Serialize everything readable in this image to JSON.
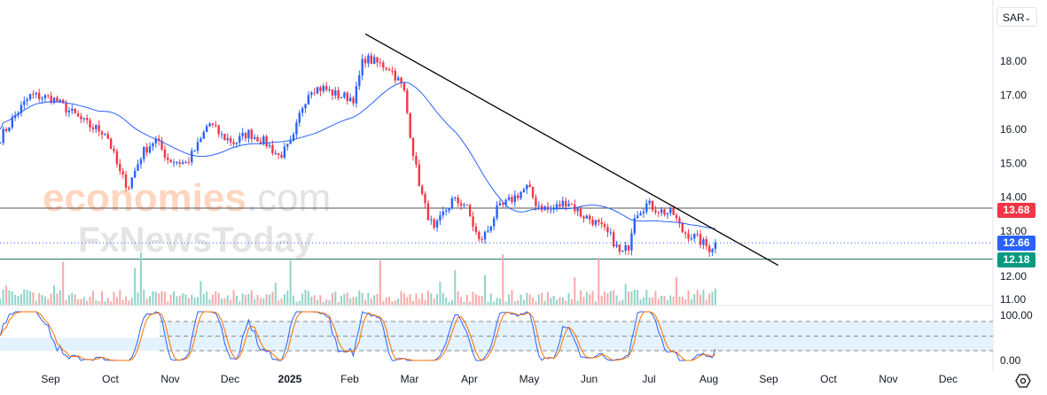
{
  "currency_selector": {
    "value": "SAR",
    "icon": "chevron-down-icon"
  },
  "watermark": {
    "brand1": "economies",
    "brand1_suffix": ".com",
    "brand2": "FxNewsToday"
  },
  "price_tags": {
    "resistance": {
      "value": "13.68",
      "color": "#f23645"
    },
    "last": {
      "value": "12.66",
      "color": "#2962ff"
    },
    "support": {
      "value": "12.18",
      "color": "#089981"
    }
  },
  "chart_data": {
    "type": "candlestick",
    "title": "",
    "y_axis": {
      "ticks": [
        "18.00",
        "17.00",
        "16.00",
        "15.00",
        "14.00",
        "13.00",
        "12.00",
        "11.00"
      ],
      "range": [
        11,
        18
      ]
    },
    "x_axis": {
      "ticks": [
        "Sep",
        "Oct",
        "Nov",
        "Dec",
        "2025",
        "Feb",
        "Mar",
        "Apr",
        "May",
        "Jun",
        "Jul",
        "Aug",
        "Sep",
        "Oct",
        "Nov",
        "Dec"
      ],
      "unit": "months since Sep 2024"
    },
    "close_keypoints": [
      [
        -0.84,
        15.75
      ],
      [
        -0.55,
        16.5
      ],
      [
        -0.33,
        17.0
      ],
      [
        0.04,
        16.9
      ],
      [
        0.34,
        16.5
      ],
      [
        0.64,
        16.1
      ],
      [
        0.93,
        15.9
      ],
      [
        1.16,
        14.7
      ],
      [
        1.3,
        14.3
      ],
      [
        1.53,
        15.3
      ],
      [
        1.75,
        15.7
      ],
      [
        1.97,
        15.1
      ],
      [
        2.27,
        15.0
      ],
      [
        2.49,
        15.6
      ],
      [
        2.64,
        16.2
      ],
      [
        2.86,
        15.8
      ],
      [
        3.08,
        15.6
      ],
      [
        3.3,
        15.9
      ],
      [
        3.6,
        15.6
      ],
      [
        3.82,
        15.2
      ],
      [
        4.04,
        15.6
      ],
      [
        4.19,
        16.6
      ],
      [
        4.34,
        17.2
      ],
      [
        4.56,
        17.2
      ],
      [
        4.79,
        17.0
      ],
      [
        5.08,
        16.9
      ],
      [
        5.23,
        18.1
      ],
      [
        5.38,
        18.0
      ],
      [
        5.67,
        17.8
      ],
      [
        5.9,
        17.2
      ],
      [
        6.0,
        16.0
      ],
      [
        6.09,
        15.0
      ],
      [
        6.24,
        13.8
      ],
      [
        6.41,
        13.0
      ],
      [
        6.56,
        13.5
      ],
      [
        6.71,
        13.9
      ],
      [
        6.93,
        13.8
      ],
      [
        7.16,
        12.7
      ],
      [
        7.3,
        13.0
      ],
      [
        7.45,
        13.6
      ],
      [
        7.75,
        14.0
      ],
      [
        7.97,
        14.3
      ],
      [
        8.12,
        13.8
      ],
      [
        8.34,
        13.6
      ],
      [
        8.64,
        13.9
      ],
      [
        8.86,
        13.5
      ],
      [
        9.08,
        13.3
      ],
      [
        9.38,
        12.8
      ],
      [
        9.53,
        12.3
      ],
      [
        9.67,
        12.6
      ],
      [
        9.75,
        13.5
      ],
      [
        9.97,
        13.8
      ],
      [
        10.19,
        13.6
      ],
      [
        10.41,
        13.5
      ],
      [
        10.56,
        13.0
      ],
      [
        10.79,
        12.8
      ],
      [
        11.01,
        12.5
      ],
      [
        11.13,
        12.66
      ]
    ],
    "moving_average": {
      "period": 50,
      "color": "#2962ff"
    },
    "horizontal_levels": [
      13.68,
      12.66,
      12.18
    ],
    "trendline": {
      "from": [
        5.26,
        18.8
      ],
      "to": [
        12.16,
        12.0
      ],
      "color": "#000000"
    },
    "oscillator": {
      "type": "stochastic",
      "ticks": [
        "100.00",
        "0.00"
      ],
      "range": [
        0,
        100
      ],
      "bands": [
        80,
        50,
        20
      ]
    }
  }
}
